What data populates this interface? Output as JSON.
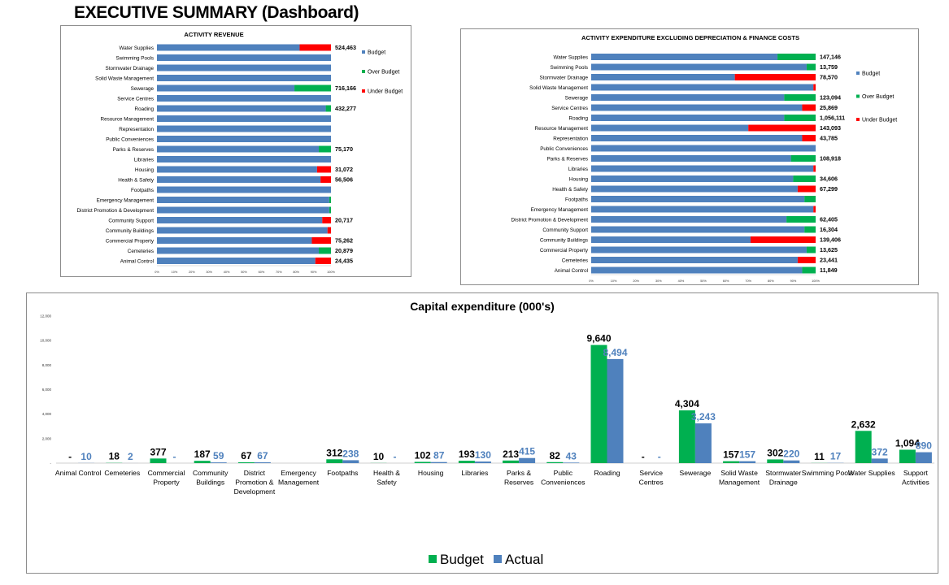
{
  "page_title": "EXECUTIVE SUMMARY (Dashboard)",
  "colors": {
    "budget": "#4f81bd",
    "green": "#00b050",
    "red": "#ff0000"
  },
  "chart_data": [
    {
      "type": "bar",
      "orientation": "horizontal",
      "stacked": "100%",
      "title": "ACTIVITY REVENUE",
      "categories": [
        "Water Supplies",
        "Swimming Pools",
        "Stormwater Drainage",
        "Solid Waste Management",
        "Sewerage",
        "Service Centres",
        "Roading",
        "Resource Management",
        "Representation",
        "Public Conveniences",
        "Parks & Reserves",
        "Libraries",
        "Housing",
        "Health & Safety",
        "Footpaths",
        "Emergency Management",
        "District Promotion & Development",
        "Community Support",
        "Community Buildings",
        "Commercial Property",
        "Cemeteries",
        "Animal Control"
      ],
      "series": [
        {
          "name": "Budget",
          "values": [
            82,
            100,
            100,
            100,
            79,
            100,
            97,
            100,
            100,
            100,
            93,
            100,
            92,
            94,
            100,
            99,
            99,
            95,
            98,
            89,
            93,
            91
          ]
        },
        {
          "name": "Over Budget",
          "values": [
            0,
            0,
            0,
            0,
            21,
            0,
            3,
            0,
            0,
            0,
            7,
            0,
            0,
            0,
            0,
            1,
            1,
            0,
            0,
            0,
            7,
            0
          ]
        },
        {
          "name": "Under Budget",
          "values": [
            18,
            0,
            0,
            0,
            0,
            0,
            0,
            0,
            0,
            0,
            0,
            0,
            8,
            6,
            0,
            0,
            0,
            5,
            2,
            11,
            0,
            9
          ]
        }
      ],
      "data_labels": [
        "524,463",
        "",
        "",
        "",
        "716,166",
        "",
        "432,277",
        "",
        "",
        "",
        "75,170",
        "",
        "31,072",
        "56,506",
        "",
        "",
        "",
        "20,717",
        "",
        "75,262",
        "20,879",
        "24,435"
      ],
      "x_tick_labels": [
        "0%",
        "10%",
        "20%",
        "30%",
        "40%",
        "50%",
        "60%",
        "70%",
        "80%",
        "90%",
        "100%"
      ],
      "legend": [
        "Budget",
        "Over Budget",
        "Under Budget"
      ],
      "legend_position": "right"
    },
    {
      "type": "bar",
      "orientation": "horizontal",
      "stacked": "100%",
      "title": "ACTIVITY EXPENDITURE EXCLUDING DEPRECIATION & FINANCE COSTS",
      "categories": [
        "Water Supplies",
        "Swimming Pools",
        "Stormwater Drainage",
        "Solid Waste Management",
        "Sewerage",
        "Service Centres",
        "Roading",
        "Resource Management",
        "Representation",
        "Public Conveniences",
        "Parks & Reserves",
        "Libraries",
        "Housing",
        "Health & Safety",
        "Footpaths",
        "Emergency Management",
        "District Promotion & Development",
        "Community Support",
        "Community Buildings",
        "Commercial Property",
        "Cemeteries",
        "Animal Control"
      ],
      "series": [
        {
          "name": "Budget",
          "values": [
            83,
            96,
            64,
            99,
            86,
            94,
            86,
            70,
            94,
            100,
            89,
            99,
            90,
            92,
            95,
            99,
            87,
            95,
            71,
            96,
            92,
            94
          ]
        },
        {
          "name": "Over Budget",
          "values": [
            17,
            4,
            0,
            0,
            14,
            0,
            14,
            0,
            0,
            0,
            11,
            0,
            10,
            0,
            5,
            0,
            13,
            5,
            0,
            4,
            0,
            6
          ]
        },
        {
          "name": "Under Budget",
          "values": [
            0,
            0,
            36,
            1,
            0,
            6,
            0,
            30,
            6,
            0,
            0,
            1,
            0,
            8,
            0,
            1,
            0,
            0,
            29,
            0,
            8,
            0
          ]
        }
      ],
      "data_labels": [
        "147,146",
        "13,759",
        "78,570",
        "",
        "123,094",
        "25,869",
        "1,056,111",
        "143,093",
        "43,785",
        "",
        "108,918",
        "",
        "34,606",
        "67,299",
        "",
        "",
        "62,405",
        "16,304",
        "139,406",
        "13,625",
        "23,441",
        "11,849"
      ],
      "x_tick_labels": [
        "0%",
        "10%",
        "20%",
        "30%",
        "40%",
        "50%",
        "60%",
        "70%",
        "80%",
        "90%",
        "100%"
      ],
      "legend": [
        "Budget",
        "Over Budget",
        "Under Budget"
      ],
      "legend_position": "right"
    },
    {
      "type": "bar",
      "title": "Capital expenditure (000's)",
      "categories": [
        "Animal Control",
        "Cemeteries",
        "Commercial Property",
        "Community Buildings",
        "District Promotion & Development",
        "Emergency Management",
        "Footpaths",
        "Health & Safety",
        "Housing",
        "Libraries",
        "Parks & Reserves",
        "Public Conveniences",
        "Roading",
        "Service Centres",
        "Sewerage",
        "Solid Waste Management",
        "Stormwater Drainage",
        "Swimming Pools",
        "Water Supplies",
        "Support Activities"
      ],
      "series": [
        {
          "name": "Budget",
          "values": [
            0,
            18,
            377,
            187,
            67,
            0,
            312,
            10,
            102,
            193,
            213,
            82,
            9640,
            0,
            4304,
            157,
            302,
            11,
            2632,
            1094
          ]
        },
        {
          "name": "Actual",
          "values": [
            10,
            2,
            0,
            59,
            67,
            0,
            238,
            0,
            87,
            130,
            415,
            43,
            8494,
            0,
            3243,
            157,
            220,
            17,
            372,
            890
          ]
        }
      ],
      "budget_labels": [
        "-",
        "18",
        "377",
        "187",
        "67",
        "",
        "312",
        "10",
        "102",
        "193",
        "213",
        "82",
        "9,640",
        "-",
        "4,304",
        "157",
        "302",
        "11",
        "2,632",
        "1,094"
      ],
      "actual_labels": [
        "10",
        "2",
        "-",
        "59",
        "67",
        "",
        "238",
        "-",
        "87",
        "130",
        "415",
        "43",
        "8,494",
        "-",
        "3,243",
        "157",
        "220",
        "17",
        "372",
        "890"
      ],
      "ylim": [
        0,
        12000
      ],
      "y_tick_values": [
        0,
        2000,
        4000,
        6000,
        8000,
        10000,
        12000
      ],
      "y_tick_labels": [
        "-",
        "2,000",
        "4,000",
        "6,000",
        "8,000",
        "10,000",
        "12,000"
      ],
      "legend": [
        "Budget",
        "Actual"
      ],
      "legend_position": "bottom"
    }
  ]
}
